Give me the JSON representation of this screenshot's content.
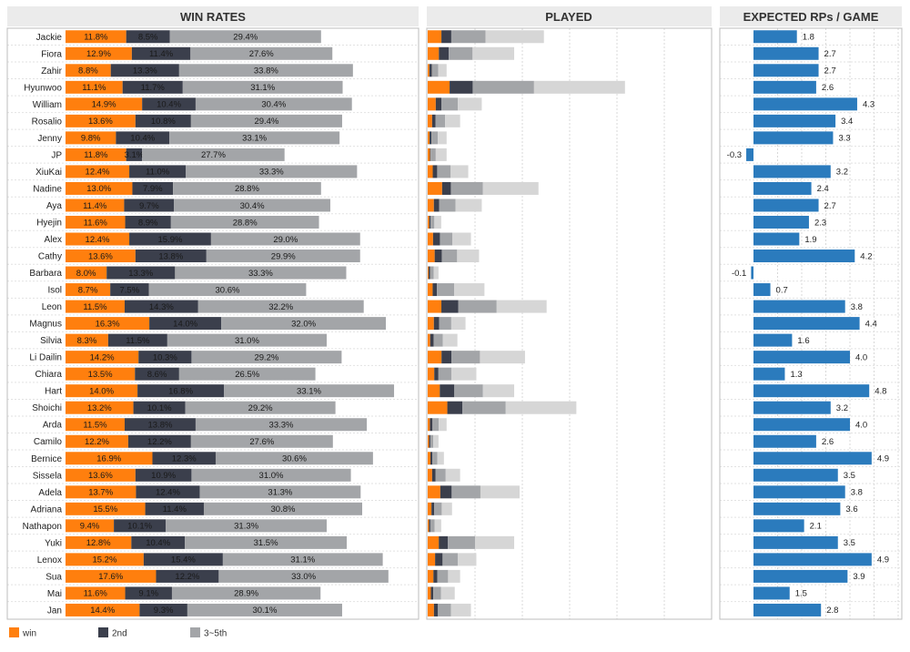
{
  "panels": {
    "win_rates": "WIN RATES",
    "played": "PLAYED",
    "expected": "EXPECTED RPs / GAME"
  },
  "legend": [
    {
      "name": "win",
      "color": "#ff7f0e"
    },
    {
      "name": "2nd",
      "color": "#3b3f4c"
    },
    {
      "name": "3~5th",
      "color": "#a3a5a8"
    }
  ],
  "colors": {
    "win": "#ff7f0e",
    "second": "#3b3f4c",
    "third_fifth": "#a3a5a8",
    "rest": "#d6d6d6",
    "rp": "#2b7bbd",
    "header_bg": "#ebebeb"
  },
  "chart_data": {
    "type": "bar",
    "categories": [
      "Jackie",
      "Fiora",
      "Zahir",
      "Hyunwoo",
      "William",
      "Rosalio",
      "Jenny",
      "JP",
      "XiuKai",
      "Nadine",
      "Aya",
      "Hyejin",
      "Alex",
      "Cathy",
      "Barbara",
      "Isol",
      "Leon",
      "Magnus",
      "Silvia",
      "Li Dailin",
      "Chiara",
      "Hart",
      "Shoichi",
      "Arda",
      "Camilo",
      "Bernice",
      "Sissela",
      "Adela",
      "Adriana",
      "Nathapon",
      "Yuki",
      "Lenox",
      "Sua",
      "Mai",
      "Jan"
    ],
    "win_rates": {
      "series": [
        {
          "name": "win",
          "values": [
            11.8,
            12.9,
            8.8,
            11.1,
            14.9,
            13.6,
            9.8,
            11.8,
            12.4,
            13.0,
            11.4,
            11.6,
            12.4,
            13.6,
            8.0,
            8.7,
            11.5,
            16.3,
            8.3,
            14.2,
            13.5,
            14.0,
            13.2,
            11.5,
            12.2,
            16.9,
            13.6,
            13.7,
            15.5,
            9.4,
            12.8,
            15.2,
            17.6,
            11.6,
            14.4
          ]
        },
        {
          "name": "2nd",
          "values": [
            8.5,
            11.4,
            13.3,
            11.7,
            10.4,
            10.8,
            10.4,
            3.1,
            11.0,
            7.9,
            9.7,
            8.9,
            15.9,
            13.8,
            13.3,
            7.5,
            14.3,
            14.0,
            11.5,
            10.3,
            8.6,
            16.8,
            10.1,
            13.8,
            12.2,
            12.3,
            10.9,
            12.4,
            11.4,
            10.1,
            10.4,
            15.4,
            12.2,
            9.1,
            9.3
          ]
        },
        {
          "name": "3~5th",
          "values": [
            29.4,
            27.6,
            33.8,
            31.1,
            30.4,
            29.4,
            33.1,
            27.7,
            33.3,
            28.8,
            30.4,
            28.8,
            29.0,
            29.9,
            33.3,
            30.6,
            32.2,
            32.0,
            31.0,
            29.2,
            26.5,
            33.1,
            29.2,
            33.3,
            27.6,
            30.6,
            31.0,
            31.3,
            30.8,
            31.3,
            31.5,
            31.1,
            33.0,
            28.9,
            30.1
          ]
        }
      ]
    },
    "played": {
      "values": [
        0.43,
        0.32,
        0.07,
        0.73,
        0.2,
        0.12,
        0.07,
        0.07,
        0.15,
        0.41,
        0.2,
        0.05,
        0.16,
        0.19,
        0.04,
        0.21,
        0.44,
        0.14,
        0.11,
        0.36,
        0.18,
        0.32,
        0.55,
        0.07,
        0.04,
        0.06,
        0.12,
        0.34,
        0.09,
        0.05,
        0.32,
        0.18,
        0.12,
        0.1,
        0.16
      ]
    },
    "expected_rp": {
      "values": [
        1.8,
        2.7,
        2.7,
        2.6,
        4.3,
        3.4,
        3.3,
        -0.3,
        3.2,
        2.4,
        2.7,
        2.3,
        1.9,
        4.2,
        -0.1,
        0.7,
        3.8,
        4.4,
        1.6,
        4.0,
        1.3,
        4.8,
        3.2,
        4.0,
        2.6,
        4.9,
        3.5,
        3.8,
        3.6,
        2.1,
        3.5,
        4.9,
        3.9,
        1.5,
        2.8
      ]
    },
    "legend_placement": "bottom-left",
    "grid": true
  }
}
